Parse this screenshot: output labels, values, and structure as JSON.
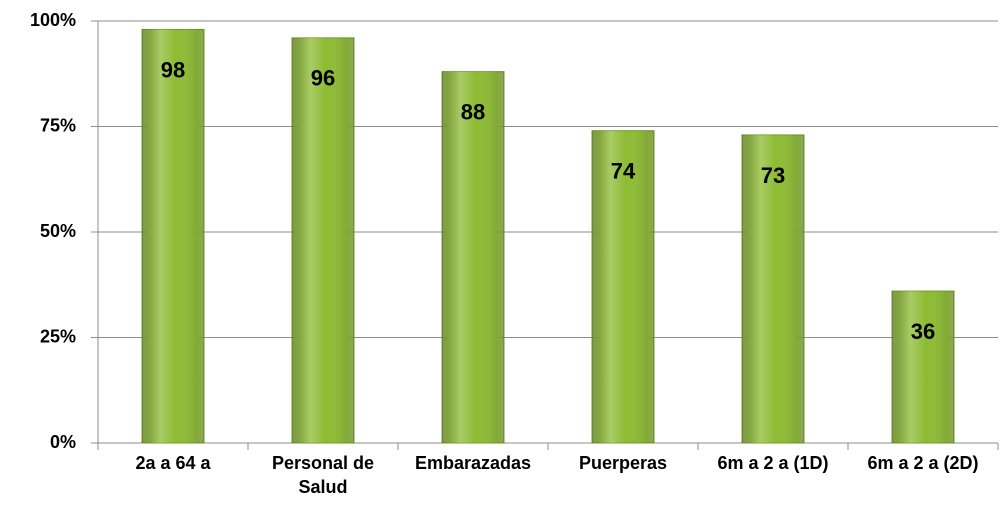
{
  "chart_data": {
    "type": "bar",
    "categories": [
      "2a a 64 a",
      "Personal de Salud",
      "Embarazadas",
      "Puerperas",
      "6m a 2 a (1D)",
      "6m a 2 a (2D)"
    ],
    "values": [
      98,
      96,
      88,
      74,
      73,
      36
    ],
    "color": "#8dbb32",
    "ylim": [
      0,
      100
    ],
    "yticks": [
      {
        "value": 0,
        "label": "0%"
      },
      {
        "value": 25,
        "label": "25%"
      },
      {
        "value": 50,
        "label": "50%"
      },
      {
        "value": 75,
        "label": "75%"
      },
      {
        "value": 100,
        "label": "100%"
      }
    ],
    "grid": true
  }
}
